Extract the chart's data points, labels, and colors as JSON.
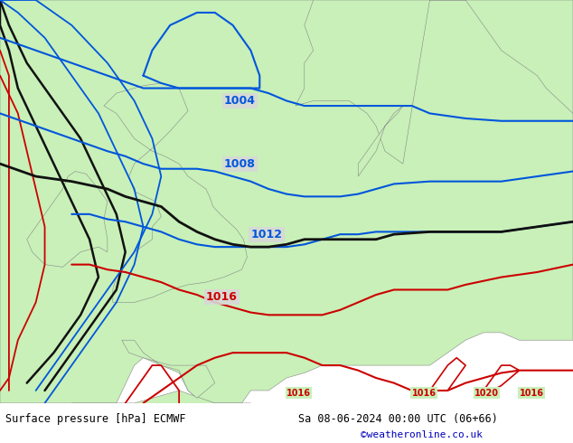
{
  "title_left": "Surface pressure [hPa] ECMWF",
  "title_right": "Sa 08-06-2024 00:00 UTC (06+66)",
  "watermark": "©weatheronline.co.uk",
  "sea_color": "#d8d8d8",
  "land_color": "#c8f0b8",
  "coast_color": "#888888",
  "bg_color": "#ffffff",
  "xlim": [
    -12,
    20
  ],
  "ylim": [
    46,
    62
  ],
  "blue_color": "#0055dd",
  "black_color": "#111111",
  "red_color": "#cc0000",
  "label_fontsize": 9
}
